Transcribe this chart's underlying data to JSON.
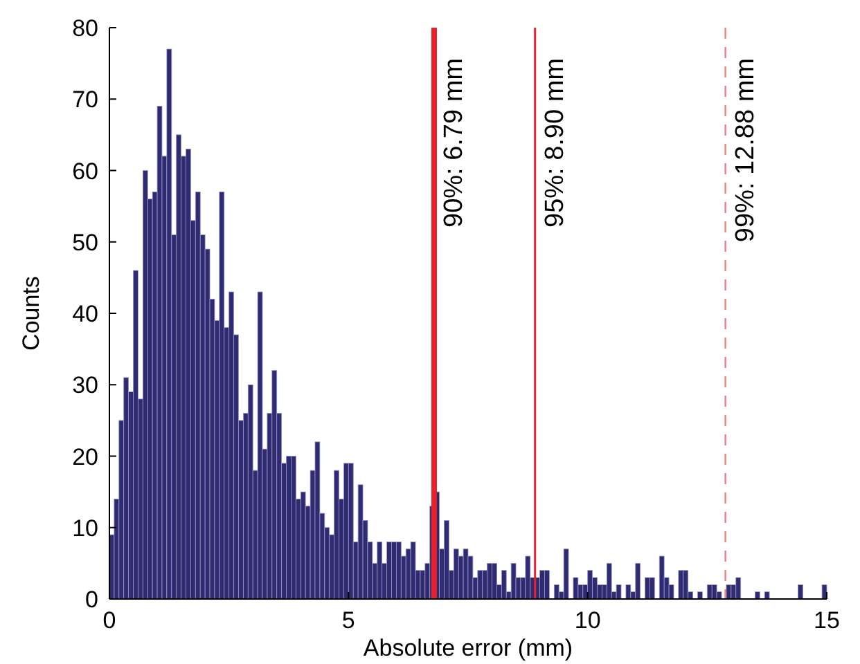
{
  "chart_data": {
    "type": "histogram",
    "xlabel": "Absolute error (mm)",
    "ylabel": "Counts",
    "color": "#2e2b72",
    "bins": [
      0,
      0.1,
      0.2,
      0.3,
      0.4,
      0.5,
      0.6,
      0.7,
      0.8,
      0.9,
      1,
      1.1,
      1.2,
      1.3,
      1.4,
      1.5,
      1.6,
      1.7,
      1.8,
      1.9,
      2,
      2.1,
      2.2,
      2.3,
      2.4,
      2.5,
      2.6,
      2.7,
      2.8,
      2.9,
      3,
      3.1,
      3.2,
      3.3,
      3.4,
      3.5,
      3.6,
      3.7,
      3.8,
      3.9,
      4,
      4.1,
      4.2,
      4.3,
      4.4,
      4.5,
      4.6,
      4.7,
      4.8,
      4.9,
      5,
      5.1,
      5.2,
      5.3,
      5.4,
      5.5,
      5.6,
      5.7,
      5.8,
      5.9,
      6,
      6.1,
      6.2,
      6.3,
      6.4,
      6.5,
      6.6,
      6.7,
      6.8,
      6.9,
      7,
      7.1,
      7.2,
      7.3,
      7.4,
      7.5,
      7.6,
      7.7,
      7.8,
      7.9,
      8,
      8.1,
      8.2,
      8.3,
      8.4,
      8.5,
      8.6,
      8.7,
      8.8,
      8.9,
      9,
      9.1,
      9.2,
      9.3,
      9.4,
      9.5,
      9.6,
      9.7,
      9.8,
      9.9,
      10,
      10.1,
      10.2,
      10.3,
      10.4,
      10.5,
      10.6,
      10.7,
      10.8,
      10.9,
      11,
      11.1,
      11.2,
      11.3,
      11.4,
      11.5,
      11.6,
      11.7,
      11.8,
      11.9,
      12,
      12.1,
      12.2,
      12.3,
      12.4,
      12.5,
      12.6,
      12.7,
      12.8,
      12.9,
      13,
      13.1,
      13.2,
      13.3,
      13.4,
      13.5,
      13.6,
      13.7,
      13.8,
      13.9,
      14,
      14.1,
      14.2,
      14.3,
      14.4,
      14.5,
      14.6,
      14.7,
      14.8,
      14.9,
      15
    ],
    "values": [
      9,
      14,
      25,
      31,
      29,
      46,
      28,
      60,
      56,
      57,
      69,
      62,
      77,
      51,
      65,
      62,
      63,
      53,
      57,
      51,
      49,
      42,
      39,
      57,
      38,
      43,
      37,
      25,
      26,
      30,
      18,
      43,
      21,
      26,
      32,
      26,
      19,
      20,
      20,
      14,
      15,
      13,
      18,
      22,
      12,
      10,
      9,
      18,
      14,
      19,
      19,
      8,
      16,
      11,
      8,
      5,
      8,
      5,
      8,
      8,
      8,
      6,
      7,
      8,
      4,
      4,
      5,
      13,
      15,
      7,
      11,
      4,
      7,
      6,
      7,
      6,
      3,
      4,
      4,
      5,
      5,
      2,
      4,
      1,
      5,
      3,
      3,
      6,
      3,
      3,
      4,
      4,
      0,
      2,
      1,
      7,
      0,
      3,
      2,
      2,
      4,
      3,
      2,
      2,
      5,
      1,
      2,
      0,
      2,
      1,
      5,
      0,
      3,
      3,
      0,
      6,
      3,
      2,
      0,
      4,
      4,
      1,
      0,
      1,
      0,
      2,
      2,
      1,
      0,
      2,
      2,
      3,
      0,
      0,
      0,
      1,
      0,
      1,
      0,
      0,
      0,
      0,
      0,
      0,
      2,
      0,
      0,
      0,
      0,
      2
    ],
    "xlim": [
      0,
      15
    ],
    "xticks": [
      0,
      5,
      10,
      15
    ],
    "ylim": [
      0,
      80
    ],
    "yticks": [
      0,
      10,
      20,
      30,
      40,
      50,
      60,
      70,
      80
    ],
    "grid": false,
    "ref_lines": [
      {
        "axis": "x",
        "value": 6.79,
        "label": "90%: 6.79 mm",
        "color": "#e8202a",
        "line_style": "solid"
      },
      {
        "axis": "x",
        "value": 8.9,
        "label": "95%: 8.90 mm",
        "color": "#e8202a",
        "line_style": "solid"
      },
      {
        "axis": "x",
        "value": 12.88,
        "label": "99%: 12.88 mm",
        "color": "#f08080",
        "line_style": "dashed"
      }
    ]
  }
}
